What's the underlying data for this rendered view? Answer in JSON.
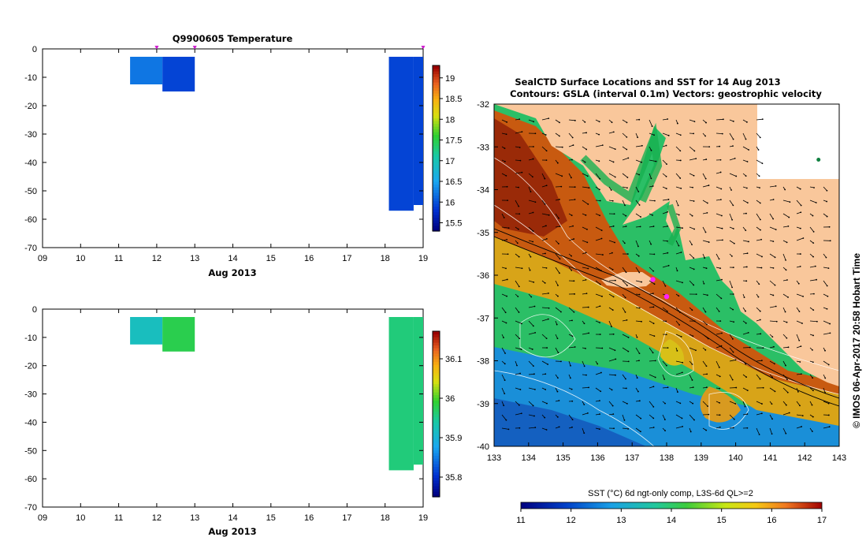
{
  "chart_data": [
    {
      "type": "bar",
      "title": "Q9900605  Temperature",
      "xlabel": "Aug 2013",
      "ylabel": "",
      "x_tick_labels": [
        "09",
        "10",
        "11",
        "12",
        "13",
        "14",
        "15",
        "16",
        "17",
        "18",
        "19"
      ],
      "y_tick_labels": [
        "0",
        "-10",
        "-20",
        "-30",
        "-40",
        "-50",
        "-60",
        "-70"
      ],
      "xlim": [
        9,
        19
      ],
      "ylim": [
        -70,
        0
      ],
      "colorbar": {
        "ticks": [
          "19",
          "18.5",
          "18",
          "17.5",
          "17",
          "16.5",
          "16",
          "15.5"
        ],
        "range": [
          15.3,
          19.3
        ]
      },
      "profile_markers_day": [
        12.0,
        13.0,
        19.0
      ],
      "profiles": [
        {
          "x_start": 11.3,
          "x_end": 12.15,
          "depth": -12.5,
          "value": 16.2
        },
        {
          "x_start": 12.15,
          "x_end": 13.0,
          "depth": -15,
          "value": 15.9
        },
        {
          "x_start": 18.1,
          "x_end": 18.75,
          "depth": -57,
          "value": 15.9
        },
        {
          "x_start": 18.75,
          "x_end": 19.0,
          "depth": -55,
          "value": 15.9
        }
      ]
    },
    {
      "type": "bar",
      "title": "",
      "xlabel": "Aug 2013",
      "ylabel": "",
      "x_tick_labels": [
        "09",
        "10",
        "11",
        "12",
        "13",
        "14",
        "15",
        "16",
        "17",
        "18",
        "19"
      ],
      "y_tick_labels": [
        "0",
        "-10",
        "-20",
        "-30",
        "-40",
        "-50",
        "-60",
        "-70"
      ],
      "xlim": [
        9,
        19
      ],
      "ylim": [
        -70,
        0
      ],
      "colorbar": {
        "ticks": [
          "36.1",
          "36",
          "35.9",
          "35.8"
        ],
        "range": [
          35.75,
          36.17
        ]
      },
      "profiles": [
        {
          "x_start": 11.3,
          "x_end": 12.15,
          "depth": -12.5,
          "value": 35.92
        },
        {
          "x_start": 12.15,
          "x_end": 13.0,
          "depth": -15,
          "value": 35.98
        },
        {
          "x_start": 18.1,
          "x_end": 18.75,
          "depth": -57,
          "value": 35.96
        },
        {
          "x_start": 18.75,
          "x_end": 19.0,
          "depth": -55,
          "value": 35.96
        }
      ]
    },
    {
      "type": "heatmap",
      "title": "SealCTD Surface Locations and SST for 14 Aug 2013",
      "subtitle": "Contours: GSLA (interval 0.1m) Vectors: geostrophic velocity",
      "xlim": [
        133,
        143
      ],
      "ylim": [
        -40,
        -32
      ],
      "x_tick_labels": [
        "133",
        "134",
        "135",
        "136",
        "137",
        "138",
        "139",
        "140",
        "141",
        "142",
        "143"
      ],
      "y_tick_labels": [
        "-32",
        "-33",
        "-34",
        "-35",
        "-36",
        "-37",
        "-38",
        "-39",
        "-40"
      ],
      "side_label": "© IMOS 06-Apr-2017 20:58 Hobart Time",
      "colorbar_label": "SST (°C) 6d ngt-only comp, L3S-6d QL>=2",
      "colorbar_ticks": [
        "11",
        "12",
        "13",
        "14",
        "15",
        "16",
        "17"
      ],
      "colorbar_range": [
        11,
        17
      ],
      "seal_locations": [
        {
          "lon": 137.6,
          "lat": -36.1
        },
        {
          "lon": 138.0,
          "lat": -36.5
        },
        {
          "lon": 142.4,
          "lat": -33.3
        }
      ]
    }
  ]
}
